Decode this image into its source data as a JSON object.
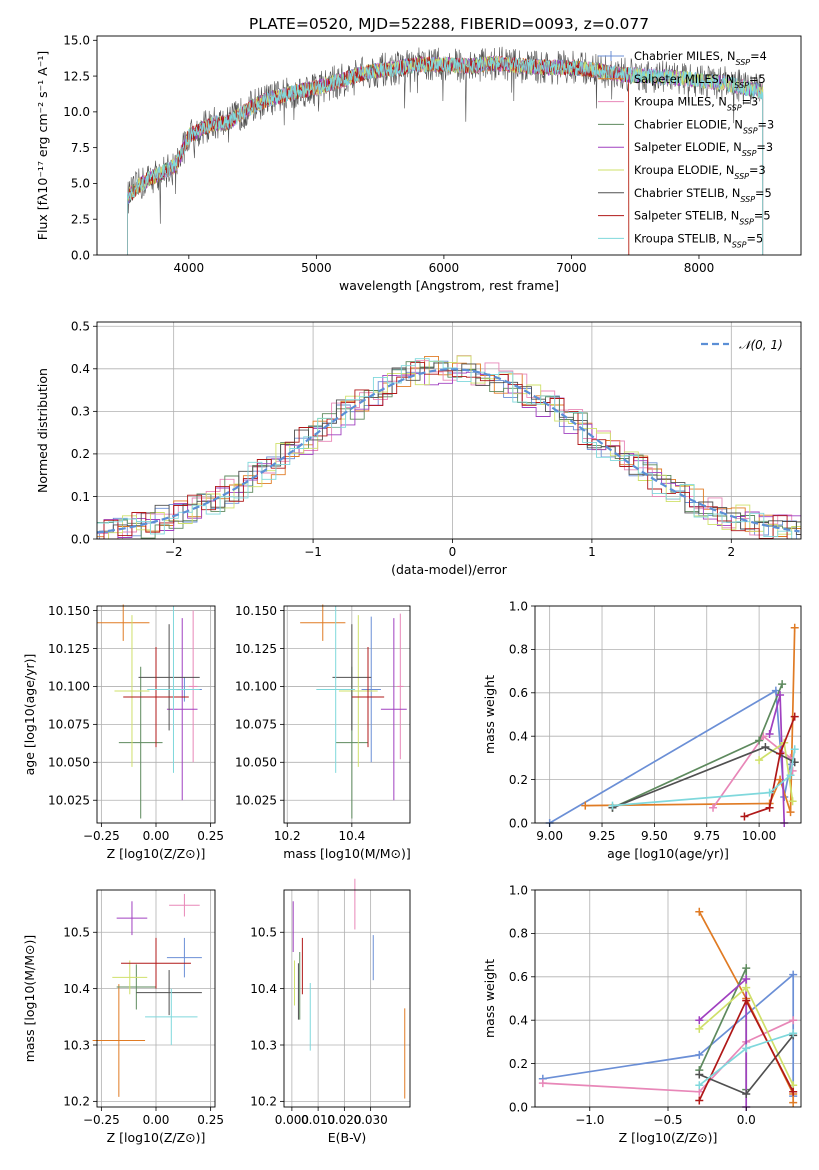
{
  "figure_title": "PLATE=0520, MJD=52288, FIBERID=0093, z=0.077",
  "colors": [
    "#6b8fd6",
    "#e07b24",
    "#e887b8",
    "#5e8a5e",
    "#a040c0",
    "#cfe06a",
    "#505050",
    "#b01818",
    "#7fd8dc"
  ],
  "chart_data": [
    {
      "id": "spectrum",
      "type": "line",
      "title": "PLATE=0520, MJD=52288, FIBERID=0093, z=0.077",
      "xlabel": "wavelength [Angstrom, rest frame]",
      "ylabel": "Flux [fλ10⁻¹⁷ erg cm⁻² s⁻¹ A⁻¹]",
      "xlim": [
        3280,
        8800
      ],
      "ylim": [
        0,
        15.3
      ],
      "xticks": [
        4000,
        5000,
        6000,
        7000,
        8000
      ],
      "yticks": [
        0.0,
        2.5,
        5.0,
        7.5,
        10.0,
        12.5,
        15.0
      ],
      "grid": false,
      "legend_loc": "upper-right",
      "legend": [
        "Chabrier MILES, N_SSP=4",
        "Salpeter MILES, N_SSP=5",
        "Kroupa MILES, N_SSP=3",
        "Chabrier ELODIE, N_SSP=3",
        "Salpeter ELODIE, N_SSP=3",
        "Kroupa ELODIE, N_SSP=3",
        "Chabrier STELIB, N_SSP=5",
        "Salpeter STELIB, N_SSP=5",
        "Kroupa STELIB, N_SSP=5"
      ],
      "continuum": {
        "x": [
          3520,
          3600,
          3700,
          3800,
          3900,
          4000,
          4100,
          4200,
          4300,
          4400,
          4500,
          4600,
          4800,
          5000,
          5200,
          5400,
          5600,
          5800,
          6000,
          6200,
          6400,
          6600,
          6800,
          7000,
          7200,
          7400,
          7600,
          7800,
          8000,
          8200,
          8400,
          8500
        ],
        "y": [
          4.0,
          4.8,
          5.4,
          5.8,
          6.3,
          8.3,
          8.8,
          9.2,
          9.2,
          9.8,
          10.4,
          10.8,
          11.3,
          11.7,
          12.2,
          12.8,
          13.0,
          13.3,
          13.3,
          13.2,
          13.4,
          13.2,
          13.1,
          13.1,
          12.9,
          12.6,
          12.5,
          12.4,
          12.2,
          12.0,
          11.6,
          11.4
        ]
      },
      "series_x_ranges": [
        [
          3520,
          8500
        ],
        [
          3520,
          7450
        ],
        [
          3520,
          8500
        ],
        [
          3520,
          8500
        ],
        [
          3520,
          8500
        ],
        [
          3520,
          8500
        ],
        [
          3520,
          8500
        ],
        [
          3520,
          7450
        ],
        [
          3520,
          8500
        ]
      ]
    },
    {
      "id": "residuals",
      "type": "histogram",
      "xlabel": "(data-model)/error",
      "ylabel": "Normed distribution",
      "xlim": [
        -2.55,
        2.5
      ],
      "ylim": [
        0,
        0.51
      ],
      "xticks": [
        -2,
        -1,
        0,
        1,
        2
      ],
      "yticks": [
        0.0,
        0.1,
        0.2,
        0.3,
        0.4,
        0.5
      ],
      "grid": true,
      "bin_width": 0.1,
      "legend_loc": "upper-right",
      "reference_label": "𝒩(0, 1)"
    },
    {
      "id": "age-vs-Z",
      "type": "scatter",
      "xlabel": "Z [log10(Z/Z⊙)]",
      "ylabel": "age  [log10(age/yr)]",
      "xlim": [
        -0.27,
        0.27
      ],
      "ylim": [
        10.01,
        10.153
      ],
      "xticks": [
        -0.25,
        0.0,
        0.25
      ],
      "xticklabels": [
        "−0.25",
        "0.00",
        "0.25"
      ],
      "yticks": [
        10.025,
        10.05,
        10.075,
        10.1,
        10.125,
        10.15
      ],
      "grid": true,
      "points": [
        {
          "x": 0.13,
          "y": 10.098,
          "xerr": 0.08,
          "yerr": 0.008
        },
        {
          "x": -0.15,
          "y": 10.142,
          "xerr": 0.12,
          "yerr": 0.012
        },
        {
          "x": 0.17,
          "y": 10.1,
          "xerr": 0.02,
          "yerr": 0.05
        },
        {
          "x": -0.07,
          "y": 10.063,
          "xerr": 0.1,
          "yerr": 0.05
        },
        {
          "x": 0.12,
          "y": 10.085,
          "xerr": 0.07,
          "yerr": 0.06
        },
        {
          "x": -0.11,
          "y": 10.097,
          "xerr": 0.08,
          "yerr": 0.05
        },
        {
          "x": 0.06,
          "y": 10.106,
          "xerr": 0.14,
          "yerr": 0.035
        },
        {
          "x": 0.0,
          "y": 10.093,
          "xerr": 0.15,
          "yerr": 0.033
        },
        {
          "x": 0.08,
          "y": 10.098,
          "xerr": 0.12,
          "yerr": 0.055
        }
      ]
    },
    {
      "id": "age-vs-mass",
      "type": "scatter",
      "xlabel": "mass [log10(M/M⊙)]",
      "ylabel": "",
      "xlim": [
        10.19,
        10.58
      ],
      "ylim": [
        10.01,
        10.153
      ],
      "xticks": [
        10.2,
        10.4
      ],
      "yticks": [
        10.025,
        10.05,
        10.075,
        10.1,
        10.125,
        10.15
      ],
      "grid": true,
      "points": [
        {
          "x": 10.46,
          "y": 10.098,
          "xerr": 0.03,
          "yerr": 0.048
        },
        {
          "x": 10.31,
          "y": 10.142,
          "xerr": 0.07,
          "yerr": 0.012
        },
        {
          "x": 10.55,
          "y": 10.1,
          "xerr": 0.01,
          "yerr": 0.048
        },
        {
          "x": 10.4,
          "y": 10.063,
          "xerr": 0.05,
          "yerr": 0.05
        },
        {
          "x": 10.53,
          "y": 10.085,
          "xerr": 0.04,
          "yerr": 0.06
        },
        {
          "x": 10.42,
          "y": 10.097,
          "xerr": 0.06,
          "yerr": 0.05
        },
        {
          "x": 10.4,
          "y": 10.106,
          "xerr": 0.06,
          "yerr": 0.035
        },
        {
          "x": 10.45,
          "y": 10.093,
          "xerr": 0.05,
          "yerr": 0.033
        },
        {
          "x": 10.35,
          "y": 10.098,
          "xerr": 0.06,
          "yerr": 0.055
        }
      ]
    },
    {
      "id": "weight-vs-age",
      "type": "line",
      "xlabel": "age  [log10(age/yr)]",
      "ylabel": "mass weight",
      "xlim": [
        8.93,
        10.2
      ],
      "ylim": [
        0,
        1.0
      ],
      "xticks": [
        9.0,
        9.25,
        9.5,
        9.75,
        10.0
      ],
      "xticklabels": [
        "9.00",
        "9.25",
        "9.50",
        "9.75",
        "10.00"
      ],
      "yticks": [
        0.0,
        0.2,
        0.4,
        0.6,
        0.8,
        1.0
      ],
      "grid": true,
      "series": [
        {
          "x": [
            9.0,
            10.08,
            10.12,
            10.15
          ],
          "y": [
            0.0,
            0.61,
            0.12,
            0.27
          ]
        },
        {
          "x": [
            9.17,
            10.05,
            10.1,
            10.15,
            10.17
          ],
          "y": [
            0.08,
            0.09,
            0.2,
            0.05,
            0.9
          ]
        },
        {
          "x": [
            9.78,
            10.02,
            10.15,
            10.16
          ],
          "y": [
            0.07,
            0.4,
            0.3,
            0.24
          ]
        },
        {
          "x": [
            9.3,
            10.0,
            10.11
          ],
          "y": [
            0.07,
            0.38,
            0.64
          ]
        },
        {
          "x": [
            10.05,
            10.1,
            10.12
          ],
          "y": [
            0.41,
            0.59,
            0.0
          ]
        },
        {
          "x": [
            10.0,
            10.12,
            10.16
          ],
          "y": [
            0.29,
            0.37,
            0.1
          ]
        },
        {
          "x": [
            9.3,
            10.03,
            10.17
          ],
          "y": [
            0.07,
            0.35,
            0.28
          ]
        },
        {
          "x": [
            9.93,
            10.05,
            10.1,
            10.17
          ],
          "y": [
            0.03,
            0.07,
            0.32,
            0.49
          ]
        },
        {
          "x": [
            9.3,
            10.05,
            10.15,
            10.17
          ],
          "y": [
            0.08,
            0.14,
            0.22,
            0.34
          ]
        }
      ]
    },
    {
      "id": "mass-vs-Z",
      "type": "scatter",
      "xlabel": "Z [log10(Z/Z⊙)]",
      "ylabel": "mass [log10(M/M⊙)]",
      "xlim": [
        -0.27,
        0.27
      ],
      "ylim": [
        10.19,
        10.575
      ],
      "xticks": [
        -0.25,
        0.0,
        0.25
      ],
      "xticklabels": [
        "−0.25",
        "0.00",
        "0.25"
      ],
      "yticks": [
        10.2,
        10.3,
        10.4,
        10.5
      ],
      "grid": true,
      "points": [
        {
          "x": 0.13,
          "y": 10.455,
          "xerr": 0.08,
          "yerr": 0.035
        },
        {
          "x": -0.17,
          "y": 10.308,
          "xerr": 0.12,
          "yerr": 0.1
        },
        {
          "x": 0.13,
          "y": 10.548,
          "xerr": 0.07,
          "yerr": 0.02
        },
        {
          "x": -0.09,
          "y": 10.403,
          "xerr": 0.09,
          "yerr": 0.04
        },
        {
          "x": -0.11,
          "y": 10.525,
          "xerr": 0.07,
          "yerr": 0.03
        },
        {
          "x": -0.12,
          "y": 10.42,
          "xerr": 0.08,
          "yerr": 0.03
        },
        {
          "x": 0.06,
          "y": 10.393,
          "xerr": 0.15,
          "yerr": 0.04
        },
        {
          "x": 0.0,
          "y": 10.445,
          "xerr": 0.16,
          "yerr": 0.045
        },
        {
          "x": 0.07,
          "y": 10.35,
          "xerr": 0.12,
          "yerr": 0.05
        }
      ]
    },
    {
      "id": "mass-vs-EBV",
      "type": "scatter",
      "xlabel": "E(B-V)",
      "ylabel": "",
      "xlim": [
        -0.003,
        0.045
      ],
      "ylim": [
        10.19,
        10.575
      ],
      "xticks": [
        0.0,
        0.01,
        0.02,
        0.03
      ],
      "xticklabels": [
        "0.000",
        "0.010",
        "0.020",
        "0.030"
      ],
      "yticks": [
        10.2,
        10.3,
        10.4,
        10.5
      ],
      "grid": true,
      "points": [
        {
          "x": 0.031,
          "y": 10.455,
          "xerr": 0,
          "yerr": 0.04
        },
        {
          "x": 0.043,
          "y": 10.285,
          "xerr": 0,
          "yerr": 0.08
        },
        {
          "x": 0.024,
          "y": 10.55,
          "xerr": 0,
          "yerr": 0.045
        },
        {
          "x": 0.003,
          "y": 10.405,
          "xerr": 0,
          "yerr": 0.06
        },
        {
          "x": 0.0005,
          "y": 10.51,
          "xerr": 0,
          "yerr": 0.045
        },
        {
          "x": 0.001,
          "y": 10.41,
          "xerr": 0,
          "yerr": 0.04
        },
        {
          "x": 0.0025,
          "y": 10.395,
          "xerr": 0,
          "yerr": 0.05
        },
        {
          "x": 0.004,
          "y": 10.44,
          "xerr": 0,
          "yerr": 0.05
        },
        {
          "x": 0.007,
          "y": 10.35,
          "xerr": 0,
          "yerr": 0.06
        }
      ]
    },
    {
      "id": "weight-vs-Z",
      "type": "line",
      "xlabel": "Z [log10(Z/Z⊙)]",
      "ylabel": "mass weight",
      "xlim": [
        -1.35,
        0.35
      ],
      "ylim": [
        0,
        1.0
      ],
      "xticks": [
        -1.0,
        -0.5,
        0.0
      ],
      "xticklabels": [
        "−1.0",
        "−0.5",
        "0.0"
      ],
      "yticks": [
        0.0,
        0.2,
        0.4,
        0.6,
        0.8,
        1.0
      ],
      "grid": true,
      "series": [
        {
          "x": [
            -1.3,
            -0.3,
            0.3,
            0.3
          ],
          "y": [
            0.13,
            0.24,
            0.61,
            0.05
          ]
        },
        {
          "x": [
            -0.3,
            0.0,
            0.3,
            0.3
          ],
          "y": [
            0.9,
            0.5,
            0.06,
            0.02
          ]
        },
        {
          "x": [
            -1.3,
            -0.3,
            0.0,
            0.3
          ],
          "y": [
            0.11,
            0.07,
            0.3,
            0.4
          ]
        },
        {
          "x": [
            -0.3,
            0.0,
            0.0
          ],
          "y": [
            0.17,
            0.64,
            0.08
          ]
        },
        {
          "x": [
            -0.3,
            0.0,
            0.0
          ],
          "y": [
            0.4,
            0.59,
            0.0
          ]
        },
        {
          "x": [
            -0.3,
            0.0,
            0.3
          ],
          "y": [
            0.36,
            0.55,
            0.1
          ]
        },
        {
          "x": [
            -0.3,
            0.0,
            0.3
          ],
          "y": [
            0.15,
            0.06,
            0.33
          ]
        },
        {
          "x": [
            -0.3,
            0.0,
            0.3
          ],
          "y": [
            0.03,
            0.49,
            0.07
          ]
        },
        {
          "x": [
            -0.3,
            0.0,
            0.3
          ],
          "y": [
            0.1,
            0.27,
            0.34
          ]
        }
      ]
    }
  ]
}
